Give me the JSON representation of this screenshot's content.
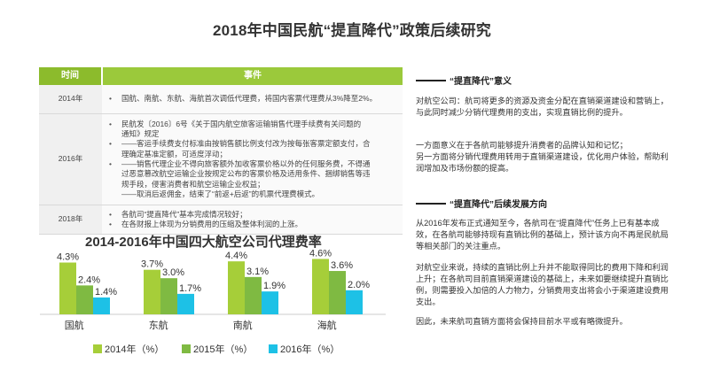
{
  "page_title": "2018年中国民航“提直降代”政策后续研究",
  "table": {
    "headers": {
      "time": "时间",
      "event": "事件"
    },
    "rows": [
      {
        "year": "2014年",
        "items": [
          "国航、南航、东航、海航首次调低代理费，将国内客票代理费从3%降至2%。"
        ]
      },
      {
        "year": "2016年",
        "items": [
          {
            "lines": [
              "民航发〔2016〕6号《关于国内航空旅客运输销售代理手续费有关问题的",
              "通知》规定"
            ]
          },
          {
            "lines": [
              "——客运手续费支付标准由按销售额比例支付改为按每张客票定额支付，合",
              "理确定基准定额，可适度浮动；"
            ]
          },
          {
            "lines": [
              "——销售代理企业不得向旅客额外加收客票价格以外的任何服务费，不得通",
              "过恶意篡改航空运输企业按规定公布的客票价格及适用条件、捆绑销售等违",
              "规手段，侵害消费者和航空运输企业权益；",
              "——取消后返佣金，结束了“前返+后返”的机票代理费模式。"
            ]
          }
        ]
      },
      {
        "year": "2018年",
        "items": [
          "各航司“提直降代”基本完成情况较好；",
          "在各财报上体现为分销费用的压缩及整体利润的上涨。"
        ]
      }
    ]
  },
  "chart_data": {
    "type": "bar",
    "title": "2014-2016年中国四大航空公司代理费率",
    "categories": [
      "国航",
      "东航",
      "南航",
      "海航"
    ],
    "series": [
      {
        "name": "2014年（%）",
        "values": [
          4.3,
          3.7,
          4.4,
          4.6
        ],
        "labels": [
          "4.3%",
          "3.7%",
          "4.4%",
          "4.6%"
        ],
        "color": "#a6ce39"
      },
      {
        "name": "2015年（%）",
        "values": [
          2.4,
          3.0,
          3.1,
          3.6
        ],
        "labels": [
          "2.4%",
          "3.0%",
          "3.1%",
          "3.6%"
        ],
        "color": "#7fba42"
      },
      {
        "name": "2016年（%）",
        "values": [
          1.4,
          1.7,
          1.9,
          2.0
        ],
        "labels": [
          "1.4%",
          "1.7%",
          "1.9%",
          "2.0%"
        ],
        "color": "#1dc1e6"
      }
    ],
    "ylim": [
      0,
      5
    ],
    "legend_position": "bottom",
    "grid": false
  },
  "right": {
    "section1": {
      "heading": "“提直降代”意义",
      "para1": "对航空公司：航司将更多的资源及资金分配在直销渠道建设和营销上，与此同时减少分销代理费用的支出，实现直销比例的提升。",
      "para2_line1": "一方面意义在于各航司能够提升消费者的品牌认知和记忆；",
      "para2_line2": "另一方面将分销代理费用转用于直销渠道建设，优化用户体验，帮助利润增加及市场份额的提高。"
    },
    "section2": {
      "heading": "“提直降代”后续发展方向",
      "para1": "从2016年发布正式通知至今，各航司在“提直降代”任务上已有基本成效，在各航司能够持现有直销比例的基础上，预计该方向不再是民航局等相关部门的关注重点。",
      "para2": "对航空业来说，持续的直销比例上升并不能取得同比的费用下降和利润上升；在各航司目前直销渠道建设的基础上，未来如要继续提升直销比例，则需要投入加倍的人力物力，分销费用支出将会小于渠道建设费用支出。",
      "para3": "因此，未来航司直销方面将会保持目前水平或有略微提升。"
    }
  }
}
